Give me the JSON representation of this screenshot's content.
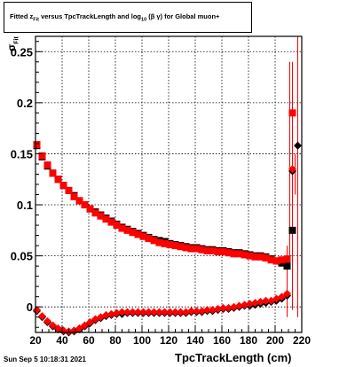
{
  "title": {
    "prefix": "Fitted  z",
    "prefix_sub": "Fit",
    "middle": "  versus TpcTrackLength and log",
    "log_sub": "10",
    "suffix": " (β  γ) for Global muon+"
  },
  "footer": {
    "timestamp": "Sun Sep  5 10:18:31 2021"
  },
  "chart_data": {
    "type": "scatter",
    "title": "Fitted z_Fit versus TpcTrackLength and log10(β γ) for Global muon+",
    "xlabel": "TpcTrackLength (cm)",
    "ylabel": "σ",
    "ylabel_sub": "Fit",
    "xlim": [
      20,
      220
    ],
    "ylim": [
      -0.025,
      0.265
    ],
    "x_ticks": [
      20,
      40,
      60,
      80,
      100,
      120,
      140,
      160,
      180,
      200,
      220
    ],
    "x_tick_labels": [
      "20",
      "40",
      "60",
      "80",
      "100",
      "120",
      "140",
      "160",
      "180",
      "200",
      "220"
    ],
    "y_ticks": [
      0,
      0.05,
      0.1,
      0.15,
      0.2,
      0.25
    ],
    "y_tick_labels": [
      "0",
      "0.05",
      "0.1",
      "0.15",
      "0.2",
      "0.25"
    ],
    "grid": true,
    "colors": {
      "red": "#ff0000",
      "black": "#000000"
    },
    "series": [
      {
        "marker": "square",
        "color": "#000000",
        "x": [
          21,
          25,
          29,
          33,
          37,
          41,
          45,
          49,
          53,
          57,
          61,
          65,
          69,
          73,
          77,
          81,
          85,
          89,
          93,
          97,
          101,
          105,
          109,
          113,
          117,
          121,
          125,
          129,
          133,
          137,
          141,
          145,
          149,
          153,
          157,
          161,
          165,
          169,
          173,
          177,
          181,
          185,
          189,
          193,
          197,
          201,
          205,
          209,
          213
        ],
        "y": [
          0.158,
          0.147,
          0.138,
          0.131,
          0.125,
          0.119,
          0.114,
          0.109,
          0.104,
          0.1,
          0.096,
          0.093,
          0.09,
          0.087,
          0.084,
          0.081,
          0.078,
          0.076,
          0.074,
          0.072,
          0.07,
          0.068,
          0.066,
          0.065,
          0.064,
          0.062,
          0.061,
          0.06,
          0.059,
          0.058,
          0.058,
          0.057,
          0.056,
          0.056,
          0.055,
          0.055,
          0.054,
          0.053,
          0.053,
          0.052,
          0.051,
          0.05,
          0.05,
          0.049,
          0.047,
          0.045,
          0.043,
          0.04,
          0.075
        ]
      },
      {
        "marker": "square",
        "color": "#ff0000",
        "x": [
          21,
          25,
          29,
          33,
          37,
          41,
          45,
          49,
          53,
          57,
          61,
          65,
          69,
          73,
          77,
          81,
          85,
          89,
          93,
          97,
          101,
          105,
          109,
          113,
          117,
          121,
          125,
          129,
          133,
          137,
          141,
          145,
          149,
          153,
          157,
          161,
          165,
          169,
          173,
          177,
          181,
          185,
          189,
          193,
          197,
          201,
          205,
          209,
          213
        ],
        "y": [
          0.159,
          0.148,
          0.139,
          0.131,
          0.125,
          0.119,
          0.114,
          0.108,
          0.104,
          0.1,
          0.096,
          0.092,
          0.089,
          0.086,
          0.083,
          0.08,
          0.077,
          0.075,
          0.073,
          0.071,
          0.069,
          0.067,
          0.065,
          0.063,
          0.062,
          0.061,
          0.06,
          0.059,
          0.058,
          0.057,
          0.057,
          0.056,
          0.055,
          0.055,
          0.054,
          0.054,
          0.053,
          0.052,
          0.052,
          0.051,
          0.05,
          0.049,
          0.049,
          0.048,
          0.046,
          0.045,
          0.046,
          0.047,
          0.19
        ]
      },
      {
        "marker": "diamond",
        "color": "#000000",
        "x": [
          21,
          25,
          29,
          33,
          37,
          41,
          45,
          49,
          53,
          57,
          61,
          65,
          69,
          73,
          77,
          81,
          85,
          89,
          93,
          97,
          101,
          105,
          109,
          113,
          117,
          121,
          125,
          129,
          133,
          137,
          141,
          145,
          149,
          153,
          157,
          161,
          165,
          169,
          173,
          177,
          181,
          185,
          189,
          193,
          197,
          201,
          205,
          209,
          213,
          217
        ],
        "y": [
          -0.004,
          -0.01,
          -0.015,
          -0.019,
          -0.022,
          -0.024,
          -0.025,
          -0.024,
          -0.022,
          -0.019,
          -0.016,
          -0.013,
          -0.011,
          -0.009,
          -0.008,
          -0.007,
          -0.007,
          -0.006,
          -0.006,
          -0.006,
          -0.006,
          -0.006,
          -0.006,
          -0.006,
          -0.006,
          -0.006,
          -0.006,
          -0.006,
          -0.006,
          -0.005,
          -0.005,
          -0.005,
          -0.004,
          -0.004,
          -0.003,
          -0.002,
          -0.002,
          -0.001,
          0.0,
          0.001,
          0.001,
          0.002,
          0.003,
          0.004,
          0.005,
          0.006,
          0.008,
          0.011,
          0.133,
          0.158
        ]
      },
      {
        "marker": "diamond",
        "color": "#ff0000",
        "x": [
          21,
          25,
          29,
          33,
          37,
          41,
          45,
          49,
          53,
          57,
          61,
          65,
          69,
          73,
          77,
          81,
          85,
          89,
          93,
          97,
          101,
          105,
          109,
          113,
          117,
          121,
          125,
          129,
          133,
          137,
          141,
          145,
          149,
          153,
          157,
          161,
          165,
          169,
          173,
          177,
          181,
          185,
          189,
          193,
          197,
          201,
          205,
          209,
          213
        ],
        "y": [
          -0.003,
          -0.009,
          -0.014,
          -0.018,
          -0.021,
          -0.023,
          -0.024,
          -0.023,
          -0.021,
          -0.018,
          -0.015,
          -0.012,
          -0.01,
          -0.008,
          -0.007,
          -0.006,
          -0.005,
          -0.005,
          -0.005,
          -0.005,
          -0.005,
          -0.005,
          -0.005,
          -0.005,
          -0.005,
          -0.005,
          -0.005,
          -0.005,
          -0.005,
          -0.004,
          -0.004,
          -0.004,
          -0.003,
          -0.003,
          -0.002,
          -0.001,
          -0.001,
          0.0,
          0.001,
          0.002,
          0.003,
          0.004,
          0.005,
          0.006,
          0.006,
          0.008,
          0.01,
          0.013,
          0.135
        ]
      }
    ],
    "error_bars": [
      {
        "x": 213,
        "color": "#ff0000",
        "low": -0.003,
        "high": 0.24
      },
      {
        "x": 211,
        "color": "#ff0000",
        "low": 0.05,
        "high": 0.24
      },
      {
        "x": 209,
        "color": "#ff0000",
        "low": -0.01,
        "high": 0.06
      },
      {
        "x": 217,
        "color": "#ff0000",
        "low": -0.01,
        "high": 0.265
      },
      {
        "x": 215,
        "color": "#ff0000",
        "low": 0.11,
        "high": 0.15
      }
    ]
  }
}
